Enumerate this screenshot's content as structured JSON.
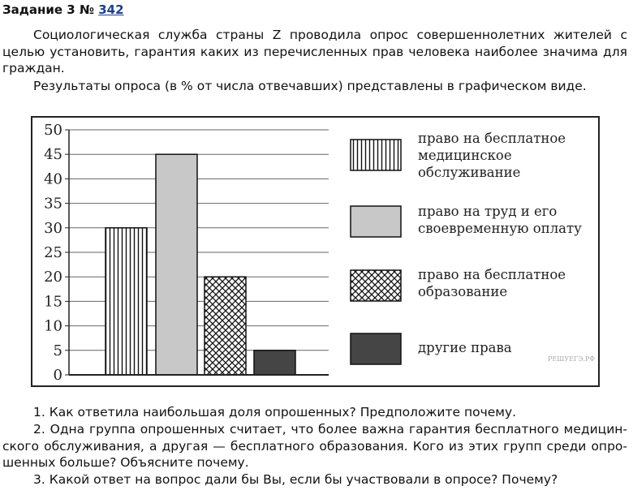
{
  "header": {
    "title": "Задание 3 №",
    "number": "342"
  },
  "intro": [
    "Социологическая служба страны Z проводила опрос совершеннолетних жителей с целью установить, гарантия каких из перечисленных прав человека наиболее значима для граждан.",
    "Результаты опроса (в % от числа отвечавших) представлены в графическом виде."
  ],
  "chart_data": {
    "type": "bar",
    "categories": [
      "право на бесплатное медицинское обслуживание",
      "право на труд и его своевременную оплату",
      "право на бесплатное образование",
      "другие права"
    ],
    "values": [
      30,
      45,
      20,
      5
    ],
    "fills": [
      "vertical-lines",
      "#c8c8c8",
      "crosshatch",
      "#454545"
    ],
    "ylim": [
      0,
      50
    ],
    "yticks": [
      0,
      5,
      10,
      15,
      20,
      25,
      30,
      35,
      40,
      45,
      50
    ],
    "grid": true,
    "legend": "right",
    "watermark": "РЕШУЕГЭ.РФ"
  },
  "questions": [
    "1. Как ответила наибольшая доля опрошенных? Предположите почему.",
    "2. Одна группа опрошенных считает, что более важна гарантия бесплатного медицин­ского обслуживания, а другая — бесплатного образования. Кого из этих групп среди опро­шенных больше? Объясните почему.",
    "3. Какой ответ на вопрос дали бы Вы, если бы участвовали в опросе? Почему?"
  ]
}
